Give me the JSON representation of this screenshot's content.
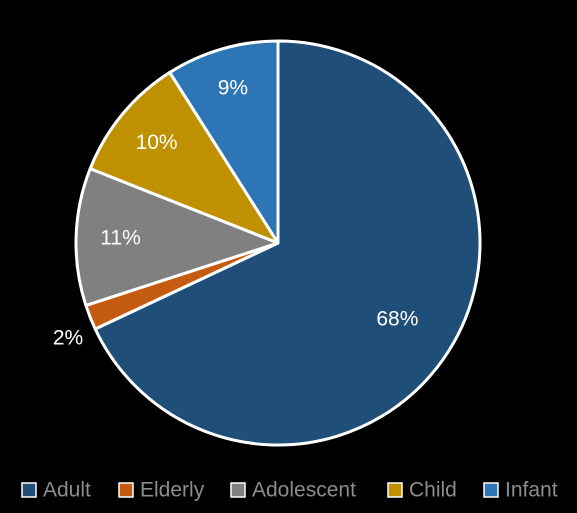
{
  "chart_data": {
    "type": "pie",
    "title": "",
    "legend_position": "bottom",
    "start_angle_deg": 0,
    "direction": "clockwise",
    "slices": [
      {
        "name": "Adult",
        "value": 68,
        "label": "68%",
        "color": "#1f4e79",
        "label_color": "#ffffff"
      },
      {
        "name": "Elderly",
        "value": 2,
        "label": "2%",
        "color": "#c55a11",
        "label_color": "#ffffff"
      },
      {
        "name": "Adolescent",
        "value": 11,
        "label": "11%",
        "color": "#808080",
        "label_color": "#ffffff"
      },
      {
        "name": "Child",
        "value": 10,
        "label": "10%",
        "color": "#bf9000",
        "label_color": "#ffffff"
      },
      {
        "name": "Infant",
        "value": 9,
        "label": "9%",
        "color": "#2e75b6",
        "label_color": "#ffffff"
      }
    ]
  }
}
